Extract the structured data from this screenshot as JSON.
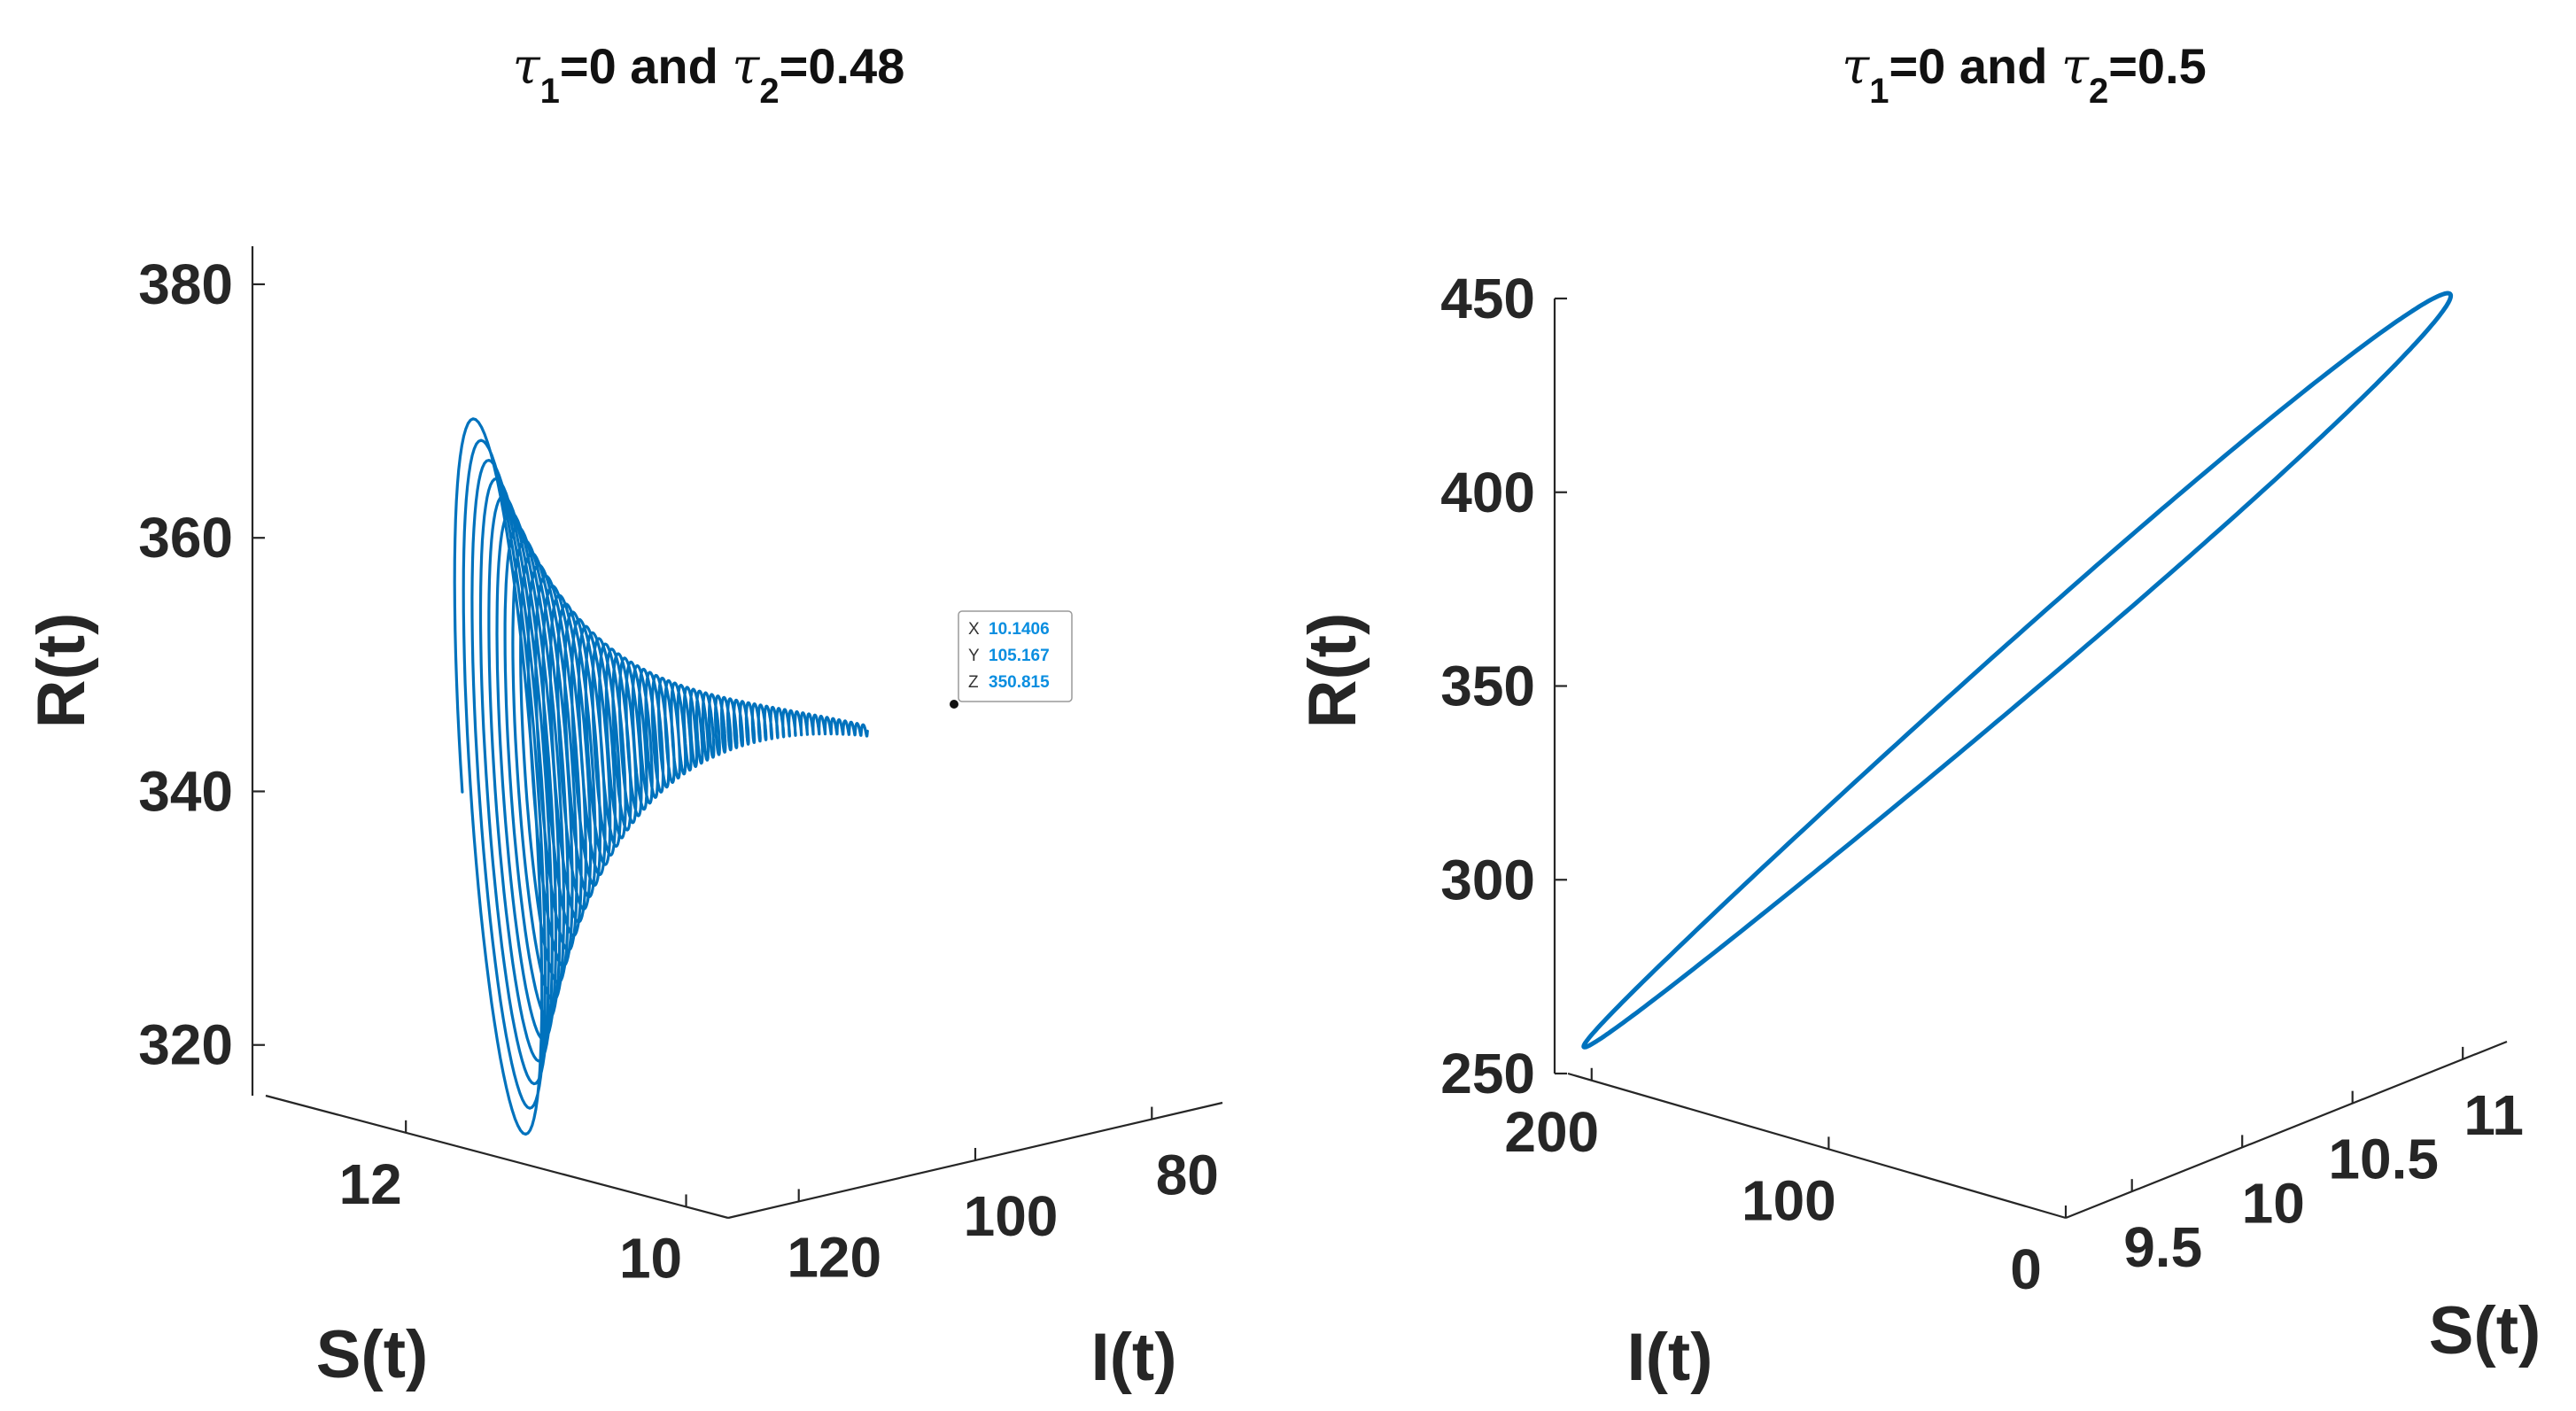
{
  "chart_data": [
    {
      "type": "line",
      "projection": "3d",
      "title": {
        "prefix": "τ",
        "sub1": "1",
        "mid": "=0 and ",
        "tau2": "τ",
        "sub2": "2",
        "suffix": "=0.48"
      },
      "xlabel": "S(t)",
      "ylabel": "I(t)",
      "zlabel": "R(t)",
      "x_ticks": [
        {
          "v": 12,
          "label": "12"
        },
        {
          "v": 10,
          "label": "10"
        }
      ],
      "y_ticks": [
        {
          "v": 120,
          "label": "120"
        },
        {
          "v": 100,
          "label": "100"
        },
        {
          "v": 80,
          "label": "80"
        }
      ],
      "z_ticks": [
        {
          "v": 320,
          "label": "320"
        },
        {
          "v": 340,
          "label": "340"
        },
        {
          "v": 360,
          "label": "360"
        },
        {
          "v": 380,
          "label": "380"
        }
      ],
      "xlim": [
        9.7,
        13.0
      ],
      "ylim": [
        72,
        128
      ],
      "zlim": [
        316,
        383
      ],
      "series": [
        {
          "description": "damped oscillation spiralling to a stable point",
          "equilibrium": {
            "x": 10.1406,
            "y": 105.167,
            "z": 350.815
          },
          "start": {
            "x": 12.5,
            "y": 113.5,
            "z": 325.0
          },
          "x_amplitude": 0.9,
          "y_amplitude": 10.5,
          "z_amplitude": 27.0,
          "color": "#0072BD"
        }
      ],
      "datatip": {
        "x_key": "X",
        "x_val": "10.1406",
        "y_key": "Y",
        "y_val": "105.167",
        "z_key": "Z",
        "z_val": "350.815"
      },
      "grid": false,
      "color": "#0072BD"
    },
    {
      "type": "line",
      "projection": "3d",
      "title": {
        "prefix": "τ",
        "sub1": "1",
        "mid": "=0 and ",
        "tau2": "τ",
        "sub2": "2",
        "suffix": "=0.5"
      },
      "xlabel": "S(t)",
      "ylabel": "I(t)",
      "zlabel": "R(t)",
      "x_ticks": [
        {
          "v": 9.5,
          "label": "9.5"
        },
        {
          "v": 10,
          "label": "10"
        },
        {
          "v": 10.5,
          "label": "10.5"
        },
        {
          "v": 11,
          "label": "11"
        }
      ],
      "y_ticks": [
        {
          "v": 200,
          "label": "200"
        },
        {
          "v": 100,
          "label": "100"
        },
        {
          "v": 0,
          "label": "0"
        }
      ],
      "z_ticks": [
        {
          "v": 250,
          "label": "250"
        },
        {
          "v": 300,
          "label": "300"
        },
        {
          "v": 350,
          "label": "350"
        },
        {
          "v": 400,
          "label": "400"
        },
        {
          "v": 450,
          "label": "450"
        }
      ],
      "xlim": [
        9.2,
        11.2
      ],
      "ylim": [
        0,
        210
      ],
      "zlim": [
        250,
        450
      ],
      "series": [
        {
          "description": "closed limit cycle",
          "z_range": [
            257,
            450
          ],
          "color": "#0072BD"
        }
      ],
      "grid": false,
      "color": "#0072BD"
    }
  ]
}
